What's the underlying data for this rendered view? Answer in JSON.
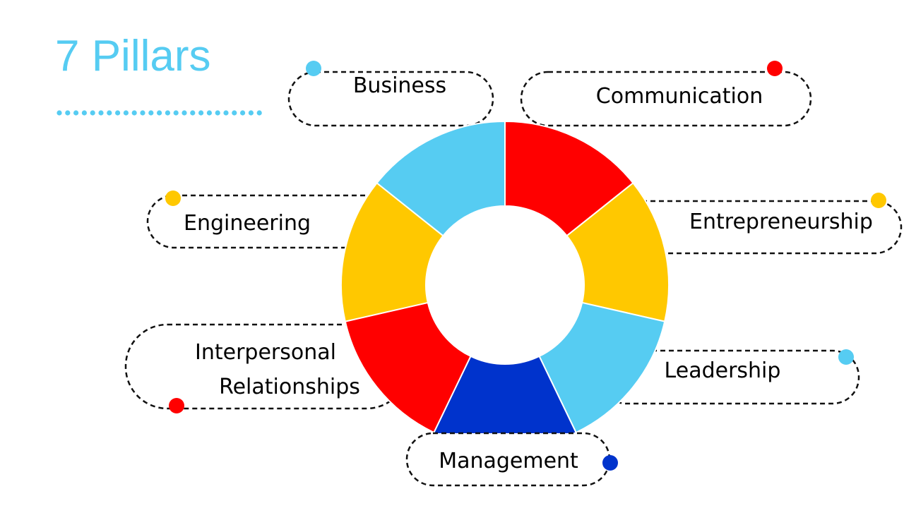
{
  "title": "7 Pillars",
  "colors": {
    "light_blue": "#56CCF2",
    "red": "#FF0000",
    "yellow": "#FFC800",
    "blue": "#0033CC"
  },
  "pillars": [
    {
      "label": "Communication",
      "color": "#FF0000"
    },
    {
      "label": "Entrepreneurship",
      "color": "#FFC800"
    },
    {
      "label": "Leadership",
      "color": "#56CCF2"
    },
    {
      "label": "Management",
      "color": "#0033CC"
    },
    {
      "label": "Interpersonal Relationships",
      "line1": "Interpersonal",
      "line2": "Relationships",
      "color": "#FF0000"
    },
    {
      "label": "Engineering",
      "color": "#FFC800"
    },
    {
      "label": "Business",
      "color": "#56CCF2"
    }
  ]
}
